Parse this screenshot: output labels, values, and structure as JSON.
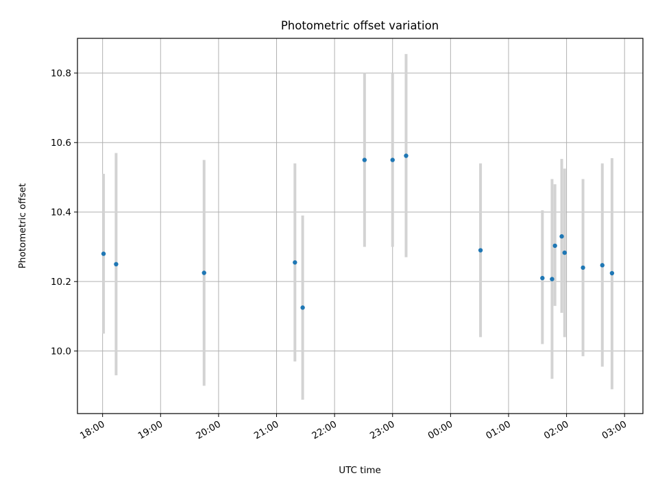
{
  "chart_data": {
    "type": "scatter",
    "title": "Photometric offset variation",
    "xlabel": "UTC time",
    "ylabel": "Photometric offset",
    "x_unit": "UTC time (hours)",
    "xlim": [
      "17:34",
      "03:19"
    ],
    "ylim": [
      9.82,
      10.9
    ],
    "grid": true,
    "x_ticks": [
      "18:00",
      "19:00",
      "20:00",
      "21:00",
      "22:00",
      "23:00",
      "00:00",
      "01:00",
      "02:00",
      "03:00"
    ],
    "y_ticks": [
      "10.0",
      "10.2",
      "10.4",
      "10.6",
      "10.8"
    ],
    "colors": {
      "point": "#1f77b4",
      "errorbar": "#d3d3d3",
      "grid": "#b0b0b0"
    },
    "points": [
      {
        "x": "18:01",
        "y": 10.28,
        "ylow": 10.05,
        "yhigh": 10.51
      },
      {
        "x": "18:14",
        "y": 10.25,
        "ylow": 9.93,
        "yhigh": 10.57
      },
      {
        "x": "19:45",
        "y": 10.225,
        "ylow": 9.9,
        "yhigh": 10.55
      },
      {
        "x": "21:19",
        "y": 10.255,
        "ylow": 9.97,
        "yhigh": 10.54
      },
      {
        "x": "21:27",
        "y": 10.125,
        "ylow": 9.86,
        "yhigh": 10.39
      },
      {
        "x": "22:31",
        "y": 10.55,
        "ylow": 10.3,
        "yhigh": 10.8
      },
      {
        "x": "23:00",
        "y": 10.55,
        "ylow": 10.3,
        "yhigh": 10.8
      },
      {
        "x": "23:14",
        "y": 10.562,
        "ylow": 10.27,
        "yhigh": 10.855
      },
      {
        "x": "00:31",
        "y": 10.29,
        "ylow": 10.04,
        "yhigh": 10.54
      },
      {
        "x": "01:35",
        "y": 10.21,
        "ylow": 10.02,
        "yhigh": 10.405
      },
      {
        "x": "01:45",
        "y": 10.207,
        "ylow": 9.92,
        "yhigh": 10.495
      },
      {
        "x": "01:48",
        "y": 10.303,
        "ylow": 10.13,
        "yhigh": 10.48
      },
      {
        "x": "01:55",
        "y": 10.33,
        "ylow": 10.11,
        "yhigh": 10.553
      },
      {
        "x": "01:58",
        "y": 10.283,
        "ylow": 10.04,
        "yhigh": 10.525
      },
      {
        "x": "02:17",
        "y": 10.24,
        "ylow": 9.985,
        "yhigh": 10.495
      },
      {
        "x": "02:37",
        "y": 10.247,
        "ylow": 9.955,
        "yhigh": 10.54
      },
      {
        "x": "02:47",
        "y": 10.224,
        "ylow": 9.89,
        "yhigh": 10.555
      }
    ]
  }
}
